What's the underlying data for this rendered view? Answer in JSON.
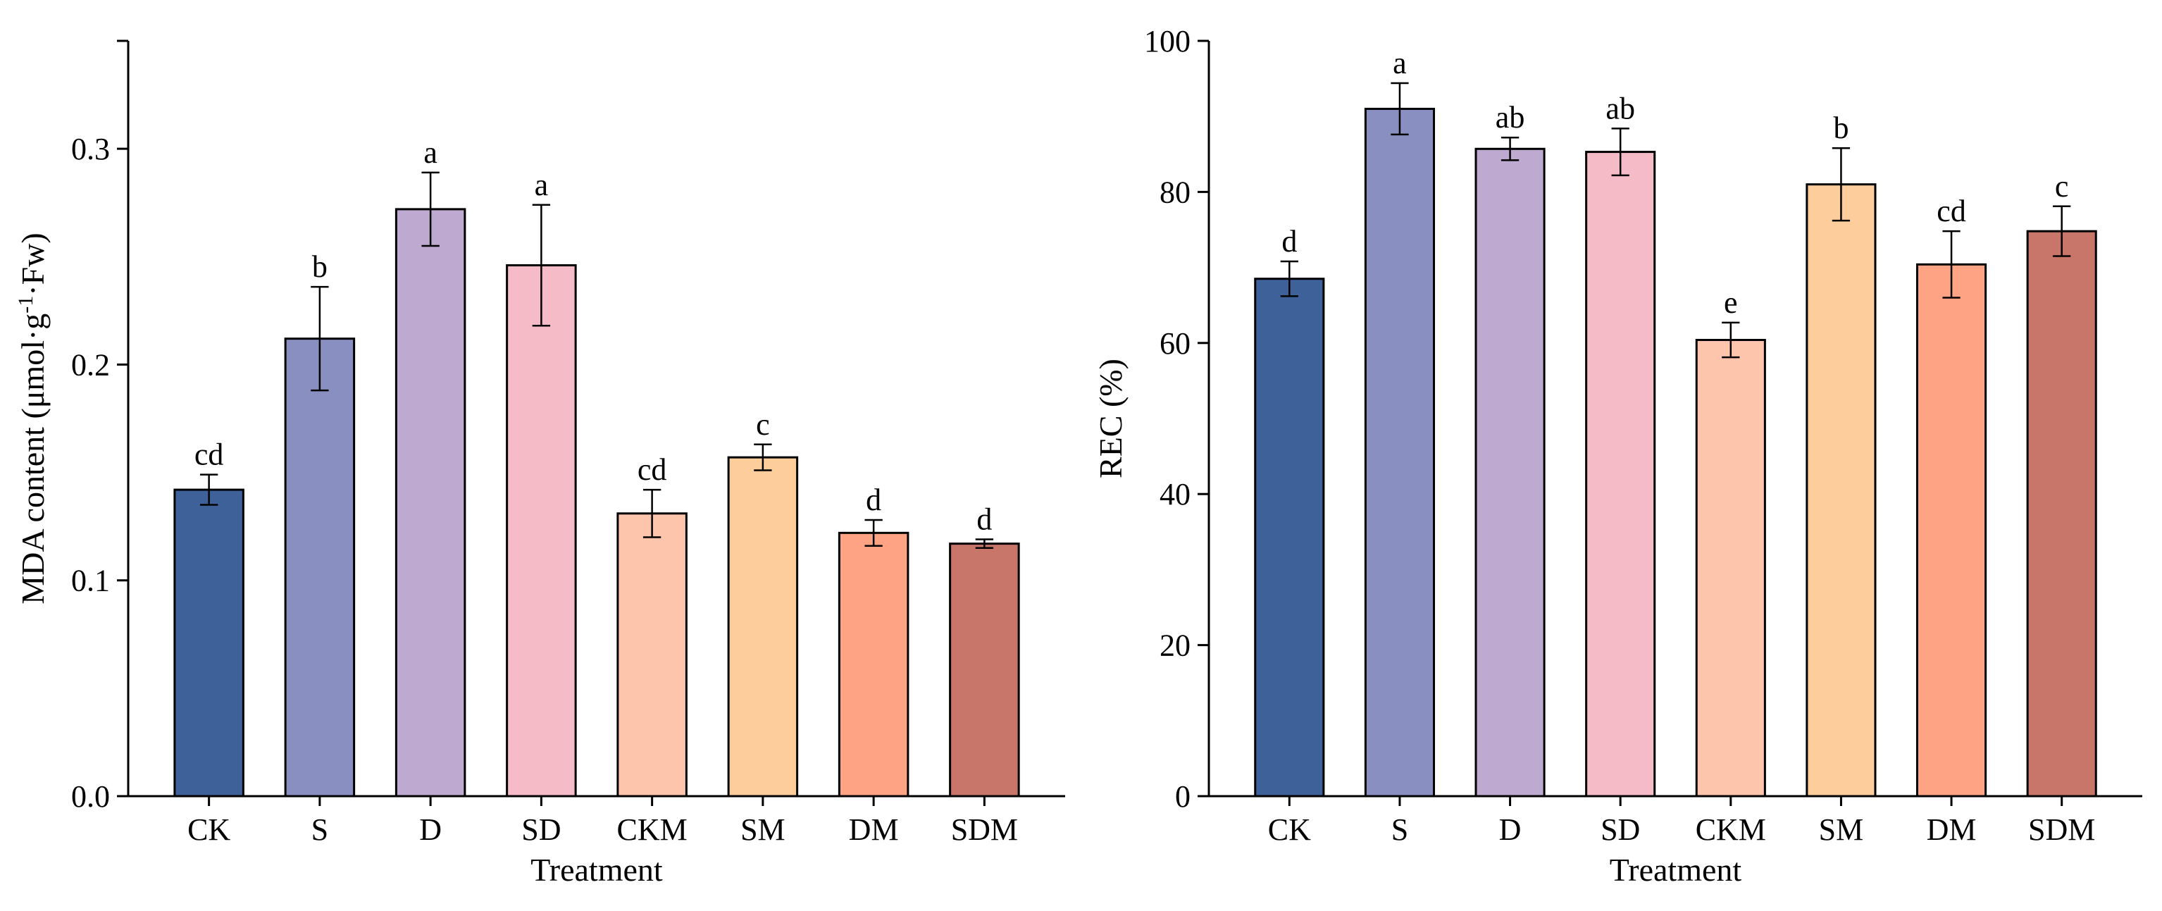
{
  "chart_data": [
    {
      "type": "bar",
      "categories": [
        "CK",
        "S",
        "D",
        "SD",
        "CKM",
        "SM",
        "DM",
        "SDM"
      ],
      "values": [
        0.142,
        0.212,
        0.272,
        0.246,
        0.131,
        0.157,
        0.122,
        0.117
      ],
      "errors": [
        0.007,
        0.024,
        0.017,
        0.028,
        0.011,
        0.006,
        0.006,
        0.002
      ],
      "significance": [
        "cd",
        "b",
        "a",
        "a",
        "cd",
        "c",
        "d",
        "d"
      ],
      "colors": [
        "#3e6199",
        "#8a8fc2",
        "#bea9d0",
        "#f5bcc8",
        "#fdc5ac",
        "#fecd9c",
        "#fea485",
        "#c8756a"
      ],
      "title": "",
      "xlabel": "Treatment",
      "ylabel_main": "MDA content (μmol·g",
      "ylabel_sup1": "-1",
      "ylabel_mid": "·Fw)",
      "ylim": [
        0,
        0.35
      ],
      "yticks": [
        0.0,
        0.1,
        0.2,
        0.3
      ],
      "ytick_labels": [
        "0.0",
        "0.1",
        "0.2",
        "0.3"
      ],
      "grid": false,
      "legend": "none"
    },
    {
      "type": "bar",
      "categories": [
        "CK",
        "S",
        "D",
        "SD",
        "CKM",
        "SM",
        "DM",
        "SDM"
      ],
      "values": [
        68.5,
        91.0,
        85.7,
        85.3,
        60.4,
        81.0,
        70.4,
        74.8
      ],
      "errors": [
        2.3,
        3.4,
        1.5,
        3.1,
        2.3,
        4.8,
        4.4,
        3.3
      ],
      "significance": [
        "d",
        "a",
        "ab",
        "ab",
        "e",
        "b",
        "cd",
        "c"
      ],
      "colors": [
        "#3e6199",
        "#8a8fc2",
        "#bea9d0",
        "#f5bcc8",
        "#fdc5ac",
        "#fecd9c",
        "#fea485",
        "#c8756a"
      ],
      "title": "",
      "xlabel": "Treatment",
      "ylabel": "REC (%)",
      "ylim": [
        0,
        100
      ],
      "yticks": [
        0,
        20,
        40,
        60,
        80,
        100
      ],
      "ytick_labels": [
        "0",
        "20",
        "40",
        "60",
        "80",
        "100"
      ],
      "grid": false,
      "legend": "none"
    }
  ]
}
